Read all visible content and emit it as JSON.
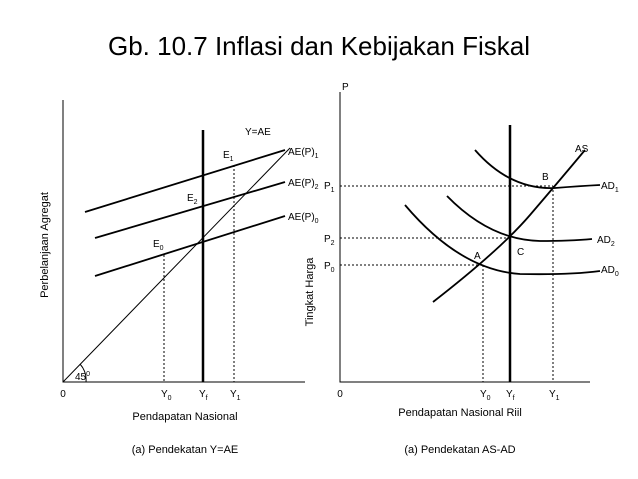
{
  "title": "Gb. 10.7 Inflasi dan Kebijakan Fiskal",
  "left_panel": {
    "line_label": "Y=AE",
    "curves": [
      {
        "base": "AE(P)",
        "sub": "1"
      },
      {
        "base": "AE(P)",
        "sub": "2"
      },
      {
        "base": "AE(P)",
        "sub": "0"
      }
    ],
    "points": [
      {
        "base": "E",
        "sub": "1"
      },
      {
        "base": "E",
        "sub": "2"
      },
      {
        "base": "E",
        "sub": "0"
      }
    ],
    "angle": {
      "base": "45",
      "sup": "0"
    },
    "origin": "0",
    "x_ticks": [
      {
        "base": "Y",
        "sub": "0"
      },
      {
        "base": "Y",
        "sub": "f"
      },
      {
        "base": "Y",
        "sub": "1"
      }
    ],
    "y_axis_label": "Perbelanjaan Agregat",
    "x_axis_label": "Pendapatan Nasional",
    "caption": "(a) Pendekatan Y=AE"
  },
  "right_panel": {
    "y_axis_top": "P",
    "curves": [
      {
        "base": "AS",
        "sub": ""
      },
      {
        "base": "AD",
        "sub": "1"
      },
      {
        "base": "AD",
        "sub": "2"
      },
      {
        "base": "AD",
        "sub": "0"
      }
    ],
    "points": [
      "A",
      "B",
      "C"
    ],
    "y_ticks": [
      {
        "base": "P",
        "sub": "1"
      },
      {
        "base": "P",
        "sub": "2"
      },
      {
        "base": "P",
        "sub": "0"
      }
    ],
    "origin": "0",
    "x_ticks": [
      {
        "base": "Y",
        "sub": "0"
      },
      {
        "base": "Y",
        "sub": "f"
      },
      {
        "base": "Y",
        "sub": "1"
      }
    ],
    "y_axis_label": "Tingkat Harga",
    "x_axis_label": "Pendapatan Nasional Riil",
    "caption": "(a) Pendekatan AS-AD"
  }
}
